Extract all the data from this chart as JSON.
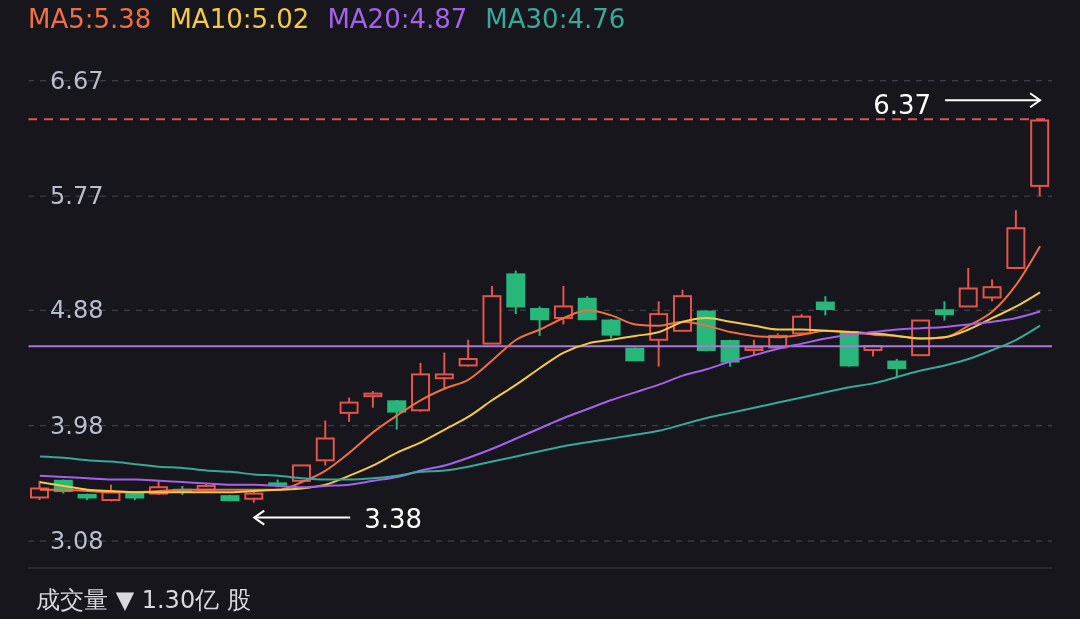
{
  "chart_data": {
    "type": "candlestick",
    "legend": "top left",
    "grid": "y",
    "categories": [
      null,
      null,
      null,
      null,
      null,
      null,
      null,
      null,
      null,
      null,
      null,
      null,
      null,
      null,
      null,
      null,
      null,
      null,
      null,
      null,
      null,
      null,
      null,
      null,
      null,
      null,
      null,
      null,
      null,
      null,
      null,
      null,
      null,
      null,
      null,
      null,
      null,
      null,
      null,
      null,
      null,
      null,
      null
    ],
    "ohlc": [
      [
        3.42,
        3.55,
        3.4,
        3.49
      ],
      [
        3.55,
        3.56,
        3.45,
        3.47
      ],
      [
        3.44,
        3.45,
        3.4,
        3.42
      ],
      [
        3.4,
        3.52,
        3.39,
        3.46
      ],
      [
        3.46,
        3.47,
        3.4,
        3.42
      ],
      [
        3.45,
        3.55,
        3.44,
        3.5
      ],
      [
        3.48,
        3.51,
        3.44,
        3.47
      ],
      [
        3.48,
        3.53,
        3.47,
        3.51
      ],
      [
        3.43,
        3.44,
        3.39,
        3.4
      ],
      [
        3.41,
        3.47,
        3.38,
        3.45
      ],
      [
        3.53,
        3.56,
        3.5,
        3.52
      ],
      [
        3.55,
        3.67,
        3.54,
        3.67
      ],
      [
        3.71,
        4.02,
        3.67,
        3.88
      ],
      [
        4.08,
        4.2,
        4.01,
        4.16
      ],
      [
        4.21,
        4.25,
        4.12,
        4.23
      ],
      [
        4.17,
        4.18,
        3.95,
        4.09
      ],
      [
        4.1,
        4.47,
        4.09,
        4.38
      ],
      [
        4.35,
        4.55,
        4.26,
        4.38
      ],
      [
        4.45,
        4.65,
        4.44,
        4.5
      ],
      [
        4.62,
        5.07,
        4.62,
        4.99
      ],
      [
        5.16,
        5.19,
        4.85,
        4.91
      ],
      [
        4.89,
        4.91,
        4.68,
        4.81
      ],
      [
        4.82,
        5.07,
        4.77,
        4.91
      ],
      [
        4.97,
        4.99,
        4.81,
        4.81
      ],
      [
        4.8,
        4.81,
        4.66,
        4.69
      ],
      [
        4.58,
        4.59,
        4.49,
        4.49
      ],
      [
        4.65,
        4.95,
        4.44,
        4.85
      ],
      [
        4.72,
        5.04,
        4.72,
        4.99
      ],
      [
        4.87,
        4.88,
        4.56,
        4.57
      ],
      [
        4.64,
        4.65,
        4.44,
        4.48
      ],
      [
        4.57,
        4.65,
        4.53,
        4.59
      ],
      [
        4.59,
        4.7,
        4.58,
        4.68
      ],
      [
        4.7,
        4.85,
        4.7,
        4.83
      ],
      [
        4.94,
        4.99,
        4.84,
        4.89
      ],
      [
        4.71,
        4.72,
        4.44,
        4.45
      ],
      [
        4.57,
        4.61,
        4.52,
        4.6
      ],
      [
        4.48,
        4.5,
        4.35,
        4.43
      ],
      [
        4.53,
        4.8,
        4.53,
        4.8
      ],
      [
        4.88,
        4.95,
        4.8,
        4.85
      ],
      [
        4.91,
        5.21,
        4.91,
        5.05
      ],
      [
        4.98,
        5.12,
        4.95,
        5.06
      ],
      [
        5.21,
        5.66,
        5.21,
        5.52
      ],
      [
        5.85,
        6.37,
        5.77,
        6.36
      ]
    ],
    "colors": [
      "#e5534b",
      "#28b77a",
      "#28b77a",
      "#e5534b",
      "#28b77a",
      "#e5534b",
      "#28b77a",
      "#e5534b",
      "#28b77a",
      "#e5534b",
      "#28b77a",
      "#e5534b",
      "#e5534b",
      "#e5534b",
      "#e5534b",
      "#28b77a",
      "#e5534b",
      "#e5534b",
      "#e5534b",
      "#e5534b",
      "#28b77a",
      "#28b77a",
      "#e5534b",
      "#28b77a",
      "#28b77a",
      "#28b77a",
      "#e5534b",
      "#e5534b",
      "#28b77a",
      "#28b77a",
      "#e5534b",
      "#e5534b",
      "#e5534b",
      "#28b77a",
      "#28b77a",
      "#e5534b",
      "#28b77a",
      "#e5534b",
      "#28b77a",
      "#e5534b",
      "#e5534b",
      "#e5534b",
      "#e5534b"
    ],
    "series": [
      {
        "type": "line",
        "name": "MA5:5.38",
        "color": "#ee6f45",
        "values": [
          3.48,
          3.48,
          3.47,
          3.46,
          3.46,
          3.47,
          3.48,
          3.48,
          3.48,
          3.48,
          3.48,
          3.54,
          3.63,
          3.77,
          3.93,
          4.06,
          4.18,
          4.27,
          4.34,
          4.49,
          4.65,
          4.73,
          4.82,
          4.88,
          4.84,
          4.77,
          4.76,
          4.79,
          4.76,
          4.71,
          4.68,
          4.67,
          4.69,
          4.72,
          4.71,
          4.69,
          4.68,
          4.66,
          4.67,
          4.76,
          4.87,
          5.08,
          5.38
        ]
      },
      {
        "type": "line",
        "name": "MA10:5.02",
        "color": "#f4c94a",
        "values": [
          3.54,
          3.51,
          3.48,
          3.47,
          3.46,
          3.46,
          3.46,
          3.46,
          3.46,
          3.47,
          3.48,
          3.49,
          3.52,
          3.59,
          3.67,
          3.77,
          3.85,
          3.95,
          4.05,
          4.18,
          4.3,
          4.43,
          4.55,
          4.62,
          4.65,
          4.68,
          4.71,
          4.79,
          4.82,
          4.79,
          4.76,
          4.73,
          4.73,
          4.72,
          4.71,
          4.7,
          4.68,
          4.66,
          4.67,
          4.73,
          4.82,
          4.91,
          5.02
        ]
      },
      {
        "type": "line",
        "name": "MA20:4.87",
        "color": "#a461ea",
        "values": [
          3.59,
          3.58,
          3.57,
          3.56,
          3.56,
          3.55,
          3.54,
          3.53,
          3.52,
          3.52,
          3.51,
          3.5,
          3.51,
          3.52,
          3.55,
          3.58,
          3.63,
          3.67,
          3.73,
          3.8,
          3.88,
          3.96,
          4.04,
          4.11,
          4.18,
          4.24,
          4.3,
          4.37,
          4.42,
          4.48,
          4.53,
          4.58,
          4.62,
          4.66,
          4.69,
          4.71,
          4.73,
          4.74,
          4.75,
          4.77,
          4.79,
          4.82,
          4.87
        ]
      },
      {
        "type": "line",
        "name": "MA30:4.76",
        "color": "#3aa898",
        "values": [
          3.74,
          3.73,
          3.71,
          3.7,
          3.68,
          3.66,
          3.65,
          3.63,
          3.62,
          3.6,
          3.59,
          3.57,
          3.56,
          3.56,
          3.57,
          3.59,
          3.62,
          3.63,
          3.66,
          3.7,
          3.74,
          3.78,
          3.82,
          3.85,
          3.88,
          3.91,
          3.94,
          3.99,
          4.04,
          4.08,
          4.12,
          4.16,
          4.2,
          4.24,
          4.28,
          4.31,
          4.36,
          4.41,
          4.45,
          4.5,
          4.57,
          4.65,
          4.76
        ]
      }
    ],
    "ylim": [
      2.87,
      6.91
    ],
    "yticks": [
      3.08,
      3.98,
      4.88,
      5.77,
      6.67
    ],
    "ref_lines": [
      {
        "axis": "y",
        "value": 6.37,
        "color": "#e5534b",
        "line_style": "dashed"
      },
      {
        "axis": "y",
        "value": 4.6,
        "color": "#a879d8",
        "line_style": "solid"
      }
    ],
    "annotations": [
      {
        "text": "6.37",
        "y": 6.37
      },
      "3.38",
      "成交量 ▼ 1.30亿 股"
    ]
  }
}
